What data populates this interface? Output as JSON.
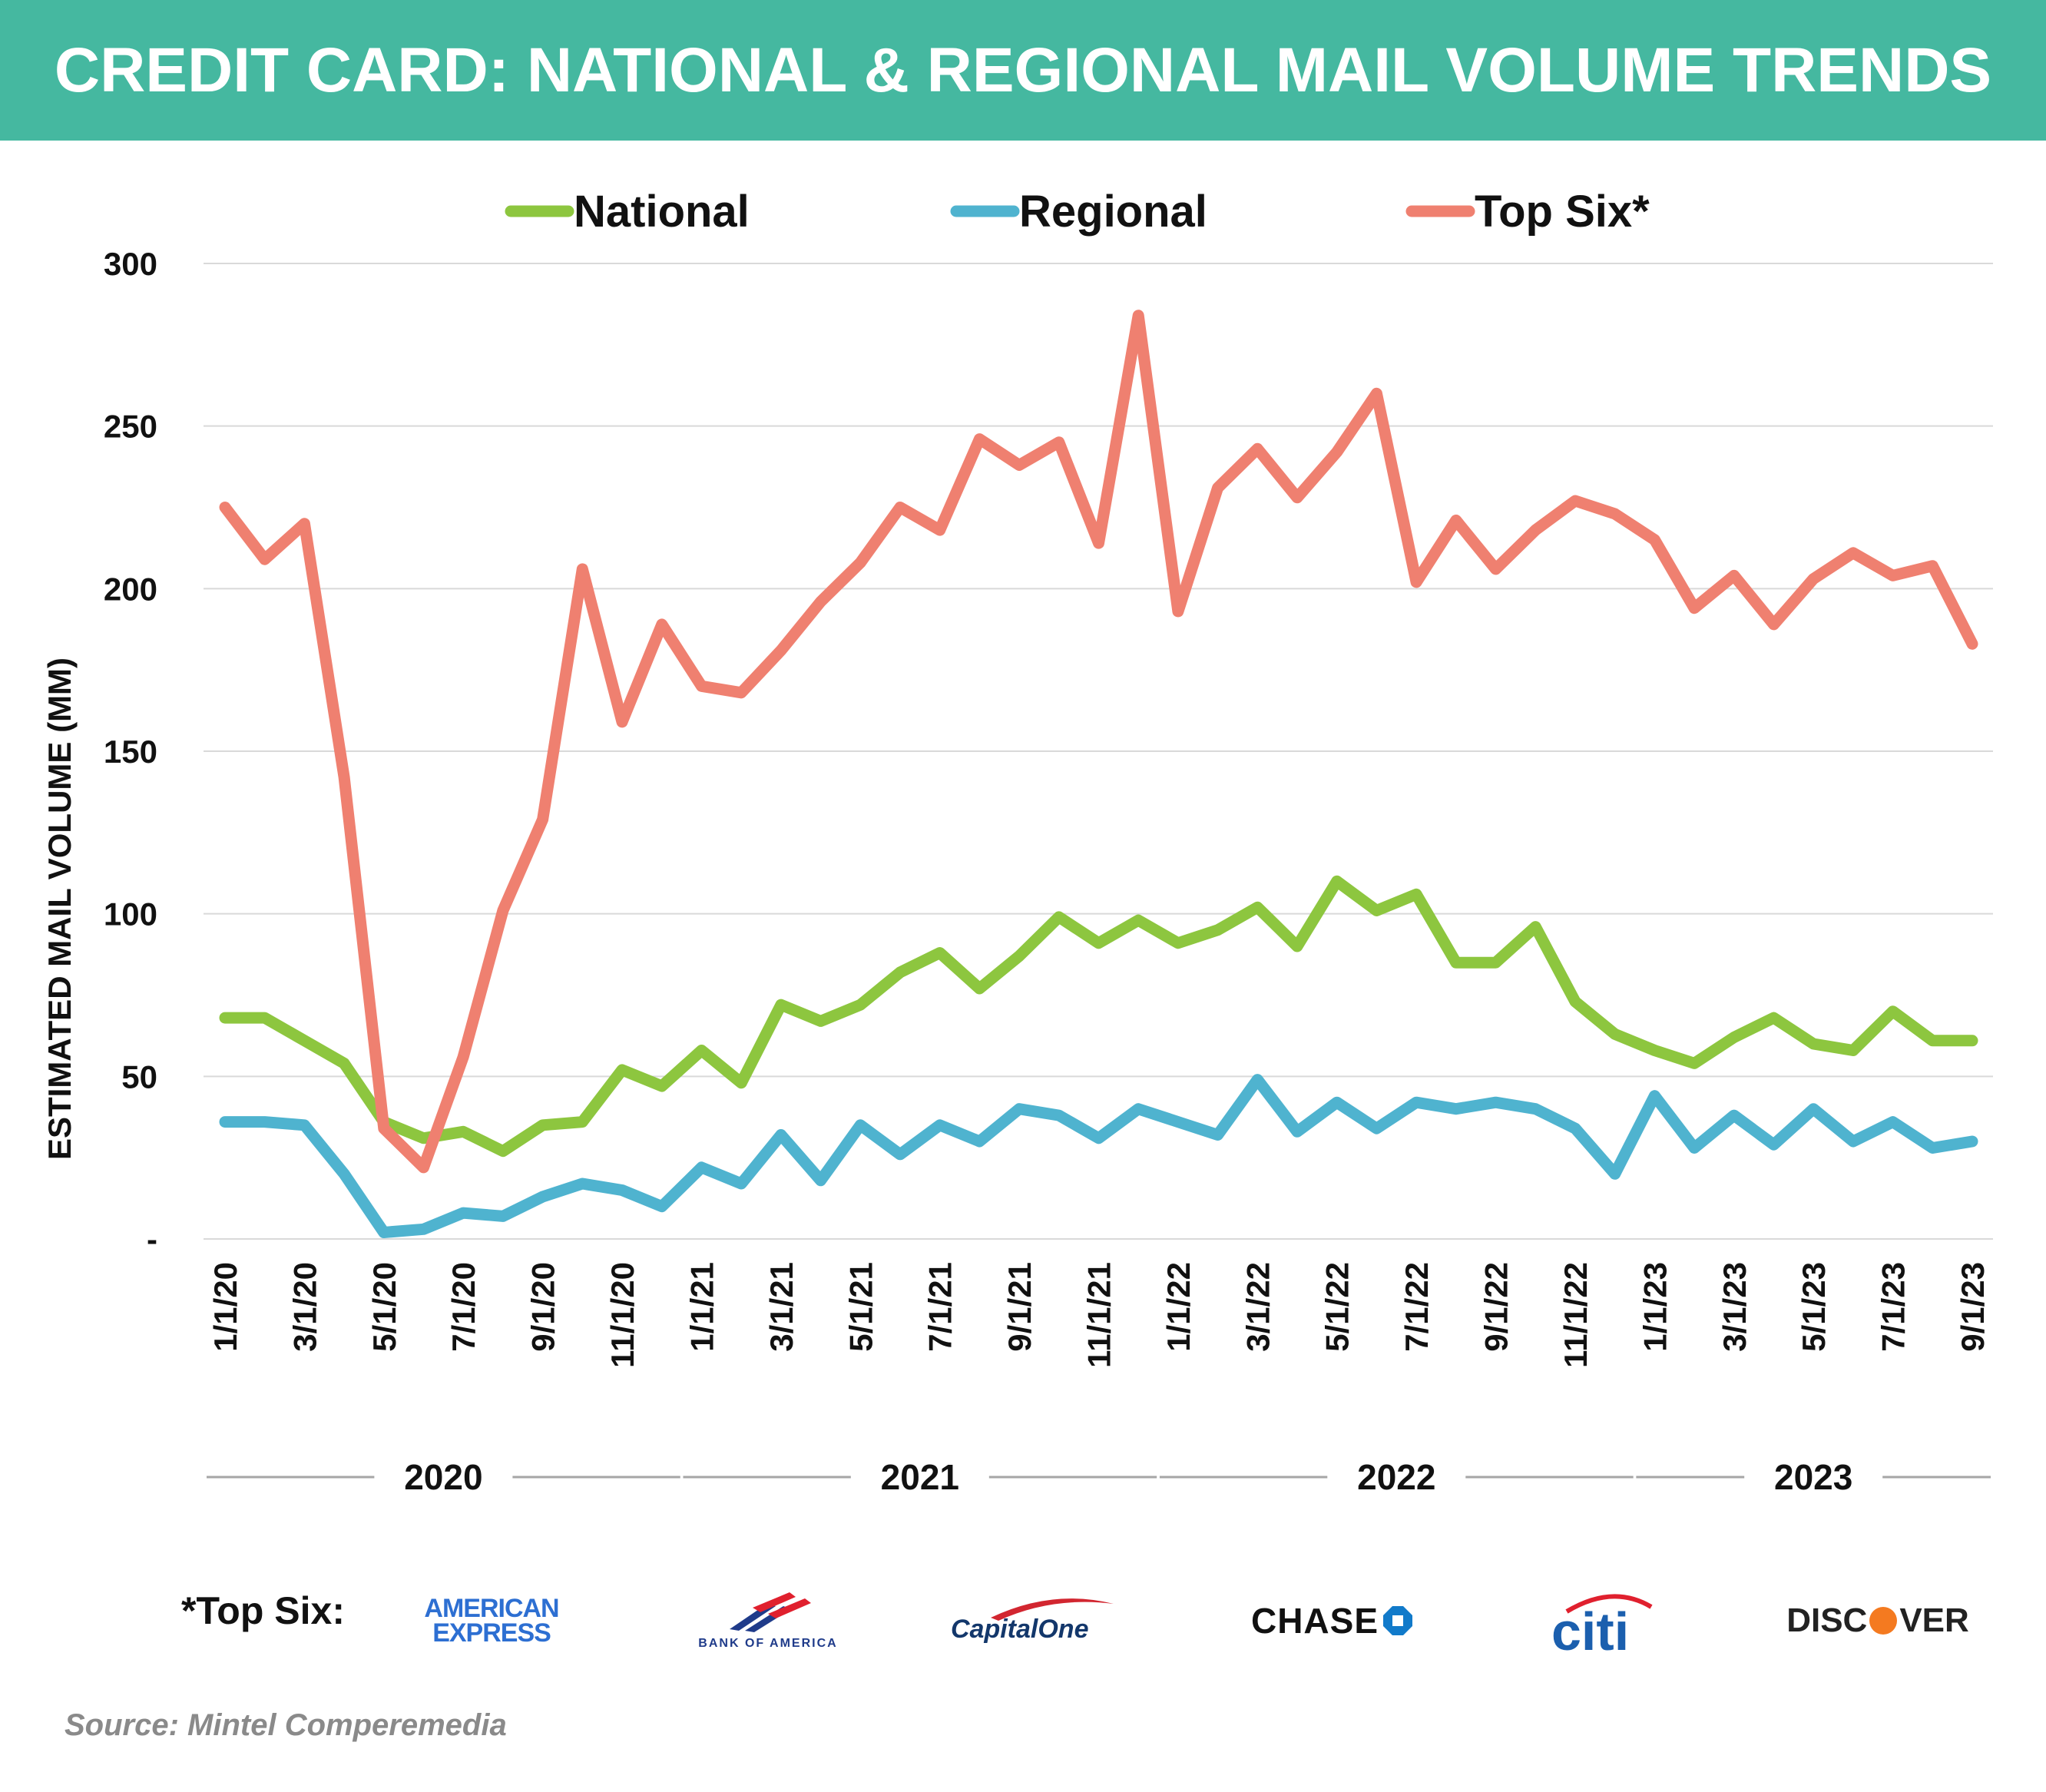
{
  "title": "CREDIT CARD: NATIONAL & REGIONAL MAIL VOLUME TRENDS",
  "source": "Source: Mintel Comperemedia",
  "top_six_label": "*Top Six:",
  "logos": [
    {
      "name": "american-express-logo",
      "lines": [
        "AMERICAN",
        "EXPRESS"
      ],
      "color": "#2d6fd2"
    },
    {
      "name": "bank-of-america-logo",
      "text": "BANK OF AMERICA",
      "color": "#1f3b8a",
      "accent": "#e0202e"
    },
    {
      "name": "capital-one-logo",
      "text": "CapitalOne",
      "color": "#13376b",
      "accent": "#d22630"
    },
    {
      "name": "chase-logo",
      "text": "CHASE",
      "color": "#111111",
      "accent": "#117aca"
    },
    {
      "name": "citi-logo",
      "text": "citi",
      "color": "#1b5fae",
      "accent": "#e0202e"
    },
    {
      "name": "discover-logo",
      "text": "DISC",
      "text2": "VER",
      "color": "#222222",
      "accent": "#f47a20"
    }
  ],
  "chart_data": {
    "type": "line",
    "title": "",
    "xlabel": "",
    "ylabel": "ESTIMATED MAIL VOLUME (MM)",
    "ylim": [
      0,
      300
    ],
    "yticks": [
      0,
      50,
      100,
      150,
      200,
      250,
      300
    ],
    "ytick_labels": [
      "-",
      "50",
      "100",
      "150",
      "200",
      "250",
      "300"
    ],
    "grid": true,
    "legend_position": "top",
    "x": [
      "1/1/20",
      "2/1/20",
      "3/1/20",
      "4/1/20",
      "5/1/20",
      "6/1/20",
      "7/1/20",
      "8/1/20",
      "9/1/20",
      "10/1/20",
      "11/1/20",
      "12/1/20",
      "1/1/21",
      "2/1/21",
      "3/1/21",
      "4/1/21",
      "5/1/21",
      "6/1/21",
      "7/1/21",
      "8/1/21",
      "9/1/21",
      "10/1/21",
      "11/1/21",
      "12/1/21",
      "1/1/22",
      "2/1/22",
      "3/1/22",
      "4/1/22",
      "5/1/22",
      "6/1/22",
      "7/1/22",
      "8/1/22",
      "9/1/22",
      "10/1/22",
      "11/1/22",
      "12/1/22",
      "1/1/23",
      "2/1/23",
      "3/1/23",
      "4/1/23",
      "5/1/23",
      "6/1/23",
      "7/1/23",
      "8/1/23",
      "9/1/23"
    ],
    "tick_labels": [
      "1/1/20",
      "3/1/20",
      "5/1/20",
      "7/1/20",
      "9/1/20",
      "11/1/20",
      "1/1/21",
      "3/1/21",
      "5/1/21",
      "7/1/21",
      "9/1/21",
      "11/1/21",
      "1/1/22",
      "3/1/22",
      "5/1/22",
      "7/1/22",
      "9/1/22",
      "11/1/22",
      "1/1/23",
      "3/1/23",
      "5/1/23",
      "7/1/23",
      "9/1/23"
    ],
    "year_groups": [
      {
        "label": "2020",
        "start": "1/1/20",
        "end": "12/1/20"
      },
      {
        "label": "2021",
        "start": "1/1/21",
        "end": "12/1/21"
      },
      {
        "label": "2022",
        "start": "1/1/22",
        "end": "12/1/22"
      },
      {
        "label": "2023",
        "start": "1/1/23",
        "end": "9/1/23"
      }
    ],
    "series": [
      {
        "name": "National",
        "color": "#8dc63f",
        "values": [
          68,
          68,
          61,
          54,
          36,
          31,
          33,
          27,
          35,
          36,
          52,
          47,
          58,
          48,
          72,
          67,
          72,
          82,
          88,
          77,
          87,
          99,
          91,
          98,
          91,
          95,
          102,
          90,
          110,
          101,
          106,
          85,
          85,
          96,
          73,
          63,
          58,
          54,
          62,
          68,
          60,
          58,
          70,
          61,
          61
        ]
      },
      {
        "name": "Regional",
        "color": "#4fb3cf",
        "values": [
          36,
          36,
          35,
          20,
          2,
          3,
          8,
          7,
          13,
          17,
          15,
          10,
          22,
          17,
          32,
          18,
          35,
          26,
          35,
          30,
          40,
          38,
          31,
          40,
          36,
          32,
          49,
          33,
          42,
          34,
          42,
          40,
          42,
          40,
          34,
          20,
          44,
          28,
          38,
          29,
          40,
          30,
          36,
          28,
          30
        ]
      },
      {
        "name": "Top Six*",
        "color": "#ef8070",
        "values": [
          225,
          209,
          220,
          142,
          34,
          22,
          56,
          101,
          129,
          206,
          159,
          189,
          170,
          168,
          181,
          196,
          208,
          225,
          218,
          246,
          238,
          245,
          214,
          284,
          193,
          231,
          243,
          228,
          242,
          260,
          202,
          221,
          206,
          218,
          227,
          223,
          215,
          194,
          204,
          189,
          203,
          211,
          204,
          207,
          183
        ]
      }
    ]
  }
}
